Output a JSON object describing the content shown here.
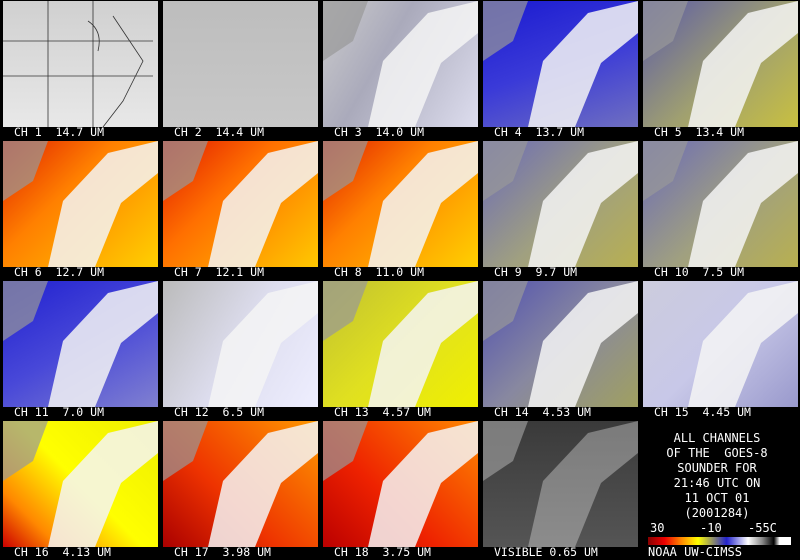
{
  "panels": [
    {
      "label": "CH 1  14.7 UM"
    },
    {
      "label": "CH 2  14.4 UM"
    },
    {
      "label": "CH 3  14.0 UM"
    },
    {
      "label": "CH 4  13.7 UM"
    },
    {
      "label": "CH 5  13.4 UM"
    },
    {
      "label": "CH 6  12.7 UM"
    },
    {
      "label": "CH 7  12.1 UM"
    },
    {
      "label": "CH 8  11.0 UM"
    },
    {
      "label": "CH 9  9.7 UM"
    },
    {
      "label": "CH 10  7.5 UM"
    },
    {
      "label": "CH 11  7.0 UM"
    },
    {
      "label": "CH 12  6.5 UM"
    },
    {
      "label": "CH 13  4.57 UM"
    },
    {
      "label": "CH 14  4.53 UM"
    },
    {
      "label": "CH 15  4.45 UM"
    },
    {
      "label": "CH 16  4.13 UM"
    },
    {
      "label": "CH 17  3.98 UM"
    },
    {
      "label": "CH 18  3.75 UM"
    },
    {
      "label": "VISIBLE 0.65 UM"
    }
  ],
  "legend": {
    "lines": [
      "ALL CHANNELS",
      "OF THE  GOES-8",
      "SOUNDER FOR",
      "21:46 UTC ON",
      "11 OCT 01",
      "(2001284)"
    ],
    "scale": [
      "30",
      "-10",
      "-55C"
    ],
    "credit": "NOAA UW-CIMSS"
  }
}
